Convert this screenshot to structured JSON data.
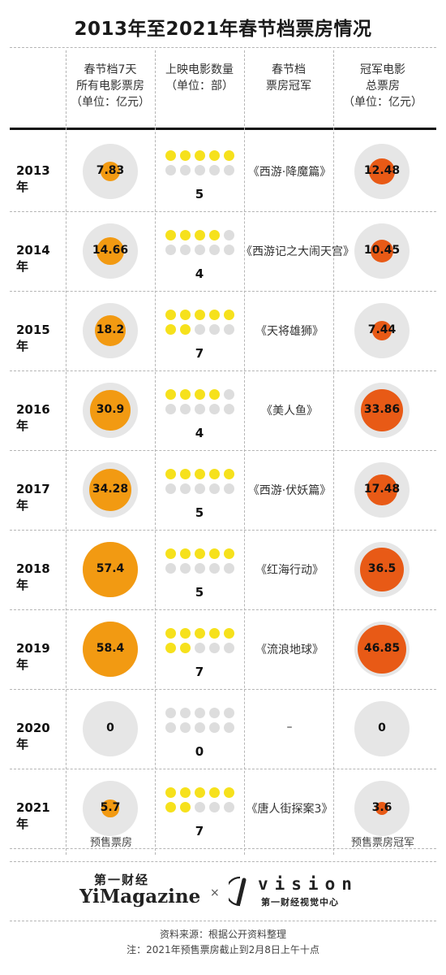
{
  "title": "2013年至2021年春节档票房情况",
  "headers": {
    "col1": [
      "春节档7天",
      "所有电影票房",
      "（单位：亿元）"
    ],
    "col2": [
      "上映电影数量",
      "（单位：部）"
    ],
    "col3": [
      "春节档",
      "票房冠军"
    ],
    "col4": [
      "冠军电影",
      "总票房",
      "（单位：亿元）"
    ]
  },
  "notes": {
    "presale_total": "预售票房",
    "presale_champion": "预售票房冠军"
  },
  "footer": {
    "logo_left_cn": "第一财经",
    "logo_left_en": "YiMagazine",
    "logo_sep": "×",
    "logo_right_en": "vision",
    "logo_right_cn": "第一财经视觉中心",
    "source": "资料来源：根据公开资料整理",
    "note": "注：2021年预售票房截止到2月8日上午十点"
  },
  "colors": {
    "total_bubble": "#f29a12",
    "champion_bubble": "#e85a16",
    "bubble_background": "#e6e6e6",
    "dot_on": "#f6e11c",
    "dot_off": "#dddddd"
  },
  "chart_data": {
    "type": "table",
    "rows": [
      {
        "year": "2013年",
        "total": 7.83,
        "total_label": "7.83",
        "films": 5,
        "films_label": "5",
        "champion": "《西游·降魔篇》",
        "champion_box": 12.48,
        "champion_box_label": "12.48"
      },
      {
        "year": "2014年",
        "total": 14.66,
        "total_label": "14.66",
        "films": 4,
        "films_label": "4",
        "champion": "《西游记之大闹天宫》",
        "champion_box": 10.45,
        "champion_box_label": "10.45"
      },
      {
        "year": "2015年",
        "total": 18.2,
        "total_label": "18.2",
        "films": 7,
        "films_label": "7",
        "champion": "《天将雄狮》",
        "champion_box": 7.44,
        "champion_box_label": "7.44"
      },
      {
        "year": "2016年",
        "total": 30.9,
        "total_label": "30.9",
        "films": 4,
        "films_label": "4",
        "champion": "《美人鱼》",
        "champion_box": 33.86,
        "champion_box_label": "33.86"
      },
      {
        "year": "2017年",
        "total": 34.28,
        "total_label": "34.28",
        "films": 5,
        "films_label": "5",
        "champion": "《西游·伏妖篇》",
        "champion_box": 17.48,
        "champion_box_label": "17.48"
      },
      {
        "year": "2018年",
        "total": 57.4,
        "total_label": "57.4",
        "films": 5,
        "films_label": "5",
        "champion": "《红海行动》",
        "champion_box": 36.5,
        "champion_box_label": "36.5"
      },
      {
        "year": "2019年",
        "total": 58.4,
        "total_label": "58.4",
        "films": 7,
        "films_label": "7",
        "champion": "《流浪地球》",
        "champion_box": 46.85,
        "champion_box_label": "46.85"
      },
      {
        "year": "2020年",
        "total": 0,
        "total_label": "0",
        "films": 0,
        "films_label": "0",
        "champion": "–",
        "champion_box": 0,
        "champion_box_label": "0"
      },
      {
        "year": "2021年",
        "total": 5.7,
        "total_label": "5.7",
        "films": 7,
        "films_label": "7",
        "champion": "《唐人街探案3》",
        "champion_box": 3.6,
        "champion_box_label": "3.6"
      }
    ],
    "dot_slots": 10
  }
}
